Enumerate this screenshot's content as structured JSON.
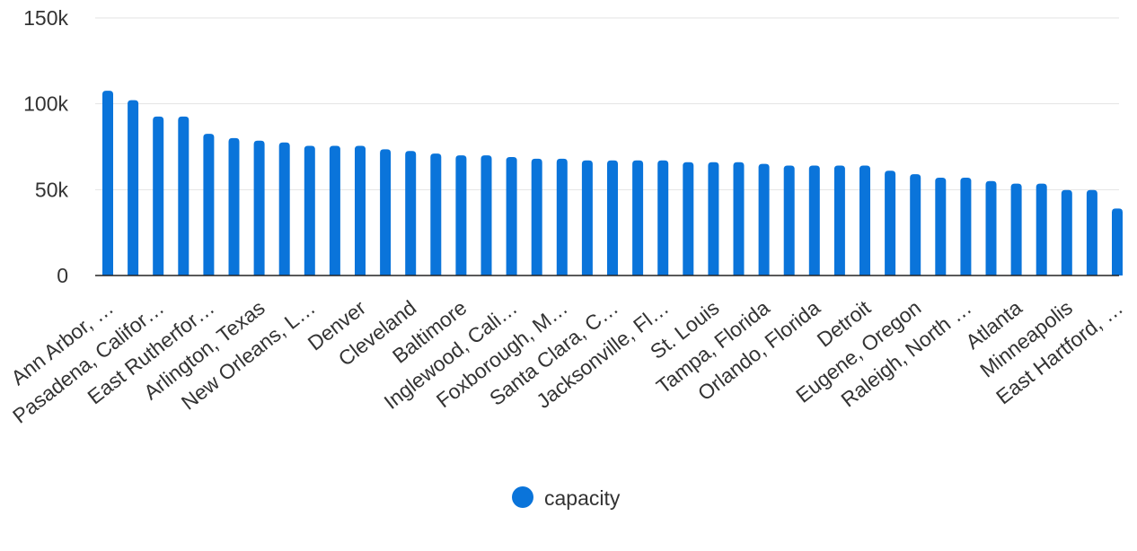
{
  "chart_data": {
    "type": "bar",
    "categories": [
      "Ann Arbor, …",
      "",
      "Pasadena, Califor…",
      "",
      "East Rutherfor…",
      "",
      "Arlington, Texas",
      "",
      "New Orleans, L…",
      "",
      "Denver",
      "",
      "Cleveland",
      "",
      "Baltimore",
      "",
      "Inglewood, Cali…",
      "",
      "Foxborough, M…",
      "",
      "Santa Clara, C…",
      "",
      "Jacksonville, Fl…",
      "",
      "St. Louis",
      "",
      "Tampa, Florida",
      "",
      "Orlando, Florida",
      "",
      "Detroit",
      "",
      "Eugene, Oregon",
      "",
      "Raleigh, North …",
      "",
      "Atlanta",
      "",
      "Minneapolis",
      "",
      "East Hartford, …"
    ],
    "series": [
      {
        "name": "capacity",
        "color": "#0a74da",
        "values": [
          107601,
          102083,
          92542,
          92542,
          82500,
          80000,
          78500,
          77500,
          75500,
          75500,
          75500,
          73500,
          72500,
          71000,
          70000,
          70000,
          69000,
          68000,
          68000,
          67000,
          67000,
          67000,
          67000,
          66000,
          66000,
          66000,
          65000,
          64000,
          64000,
          64000,
          64000,
          61000,
          59000,
          57000,
          57000,
          55000,
          53500,
          53500,
          49800,
          49800,
          39000
        ]
      }
    ],
    "yticks": [
      "0",
      "50k",
      "100k",
      "150k"
    ],
    "ytick_values": [
      0,
      50000,
      100000,
      150000
    ],
    "ylim": [
      0,
      150000
    ],
    "grid": true,
    "legend": "bottom-center",
    "title": "",
    "xlabel": "",
    "ylabel": ""
  }
}
